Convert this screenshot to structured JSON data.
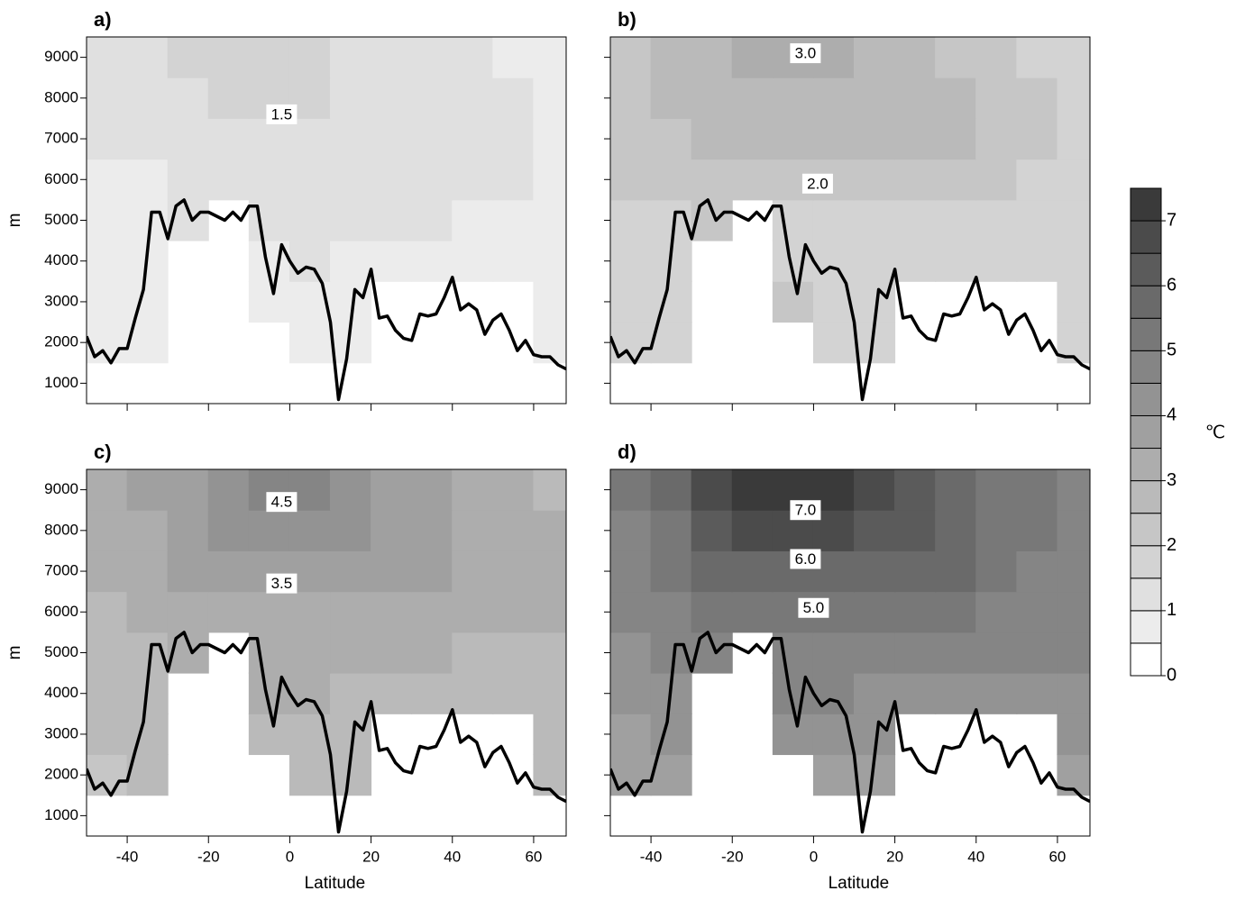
{
  "chart_data": [
    {
      "type": "contour",
      "label": "a)",
      "ylabel": "m",
      "xlim": [
        -50,
        68
      ],
      "ylim": [
        500,
        9500
      ],
      "yticks": [
        1000,
        2000,
        3000,
        4000,
        5000,
        6000,
        7000,
        8000,
        9000
      ],
      "x": [
        -45,
        -35,
        -25,
        -15,
        -5,
        5,
        15,
        25,
        35,
        45,
        55,
        65
      ],
      "y": [
        1000,
        2000,
        3000,
        4000,
        5000,
        6000,
        7000,
        8000,
        9000
      ],
      "z": [
        [
          null,
          null,
          null,
          null,
          null,
          null,
          null,
          null,
          null,
          null,
          null,
          null
        ],
        [
          0.8,
          0.8,
          null,
          null,
          null,
          0.9,
          0.9,
          null,
          null,
          null,
          null,
          0.9
        ],
        [
          0.8,
          0.8,
          null,
          null,
          0.9,
          0.9,
          0.9,
          null,
          null,
          null,
          null,
          0.9
        ],
        [
          0.8,
          0.8,
          null,
          null,
          0.9,
          1.0,
          0.9,
          0.9,
          0.9,
          0.9,
          0.8,
          0.9
        ],
        [
          0.9,
          0.9,
          1.0,
          null,
          1.1,
          1.1,
          1.1,
          1.0,
          1.1,
          0.9,
          0.9,
          0.9
        ],
        [
          0.9,
          0.9,
          1.1,
          1.2,
          1.2,
          1.2,
          1.2,
          1.2,
          1.1,
          1.1,
          1.0,
          0.9
        ],
        [
          1.1,
          1.2,
          1.3,
          1.3,
          1.3,
          1.3,
          1.3,
          1.2,
          1.2,
          1.1,
          1.1,
          0.9
        ],
        [
          1.2,
          1.3,
          1.4,
          1.5,
          1.6,
          1.5,
          1.4,
          1.3,
          1.2,
          1.1,
          1.0,
          0.9
        ],
        [
          1.2,
          1.3,
          1.6,
          1.8,
          1.8,
          1.7,
          1.4,
          1.3,
          1.2,
          1.1,
          0.9,
          0.8
        ]
      ],
      "contour_labels": {
        "values": [
          1.5
        ]
      },
      "terrain": {
        "x": [
          -50,
          -48,
          -46,
          -44,
          -42,
          -40,
          -38,
          -36,
          -34,
          -32,
          -30,
          -28,
          -26,
          -24,
          -22,
          -20,
          -18,
          -16,
          -14,
          -12,
          -10,
          -8,
          -6,
          -4,
          -2,
          0,
          2,
          4,
          6,
          8,
          10,
          12,
          14,
          16,
          18,
          20,
          22,
          24,
          26,
          28,
          30,
          32,
          34,
          36,
          38,
          40,
          42,
          44,
          46,
          48,
          50,
          52,
          54,
          56,
          58,
          60,
          62,
          64,
          66,
          68
        ],
        "values": [
          2150,
          1650,
          1800,
          1500,
          1850,
          1850,
          2600,
          3300,
          5200,
          5200,
          4550,
          5350,
          5500,
          5000,
          5200,
          5200,
          5100,
          5000,
          5200,
          5000,
          5350,
          5350,
          4100,
          3200,
          4400,
          4000,
          3700,
          3850,
          3800,
          3450,
          2500,
          600,
          1600,
          3300,
          3100,
          3800,
          2600,
          2650,
          2300,
          2100,
          2050,
          2700,
          2650,
          2700,
          3100,
          3600,
          2800,
          2950,
          2800,
          2200,
          2550,
          2700,
          2300,
          1800,
          2050,
          1700,
          1650,
          1650,
          1450,
          1350
        ]
      }
    },
    {
      "type": "contour",
      "label": "b)",
      "xlim": [
        -50,
        68
      ],
      "ylim": [
        500,
        9500
      ],
      "x": [
        -45,
        -35,
        -25,
        -15,
        -5,
        5,
        15,
        25,
        35,
        45,
        55,
        65
      ],
      "y": [
        1000,
        2000,
        3000,
        4000,
        5000,
        6000,
        7000,
        8000,
        9000
      ],
      "z": [
        [
          null,
          null,
          null,
          null,
          null,
          null,
          null,
          null,
          null,
          null,
          null,
          null
        ],
        [
          1.8,
          1.9,
          null,
          null,
          null,
          1.9,
          1.9,
          null,
          null,
          null,
          null,
          1.8
        ],
        [
          1.8,
          1.8,
          null,
          null,
          2.0,
          1.9,
          1.9,
          null,
          null,
          null,
          null,
          1.8
        ],
        [
          1.8,
          1.9,
          null,
          null,
          1.9,
          1.9,
          1.9,
          1.9,
          1.9,
          1.9,
          1.7,
          1.8
        ],
        [
          1.8,
          1.9,
          2.0,
          null,
          1.9,
          1.9,
          1.9,
          1.9,
          1.9,
          1.9,
          1.8,
          1.8
        ],
        [
          2.0,
          2.1,
          2.3,
          2.4,
          2.2,
          2.1,
          2.0,
          2.0,
          2.3,
          2.3,
          1.9,
          1.9
        ],
        [
          2.1,
          2.4,
          2.6,
          2.6,
          2.6,
          2.6,
          2.6,
          2.5,
          2.5,
          2.4,
          2.0,
          1.9
        ],
        [
          2.2,
          2.5,
          2.7,
          2.8,
          2.8,
          2.8,
          2.7,
          2.6,
          2.5,
          2.3,
          2.0,
          1.9
        ],
        [
          2.3,
          2.6,
          2.8,
          3.0,
          3.1,
          3.0,
          2.8,
          2.6,
          2.4,
          2.2,
          1.9,
          1.8
        ]
      ],
      "contour_labels": {
        "values": [
          3,
          2
        ],
        "value_labels": [
          "3.0",
          "2.0"
        ]
      }
    },
    {
      "type": "contour",
      "label": "c)",
      "ylabel": "m",
      "xlabel": "Latitude",
      "xlim": [
        -50,
        68
      ],
      "ylim": [
        500,
        9500
      ],
      "yticks": [
        1000,
        2000,
        3000,
        4000,
        5000,
        6000,
        7000,
        8000,
        9000
      ],
      "xticks": [
        -40,
        -20,
        0,
        20,
        40,
        60
      ],
      "x": [
        -45,
        -35,
        -25,
        -15,
        -5,
        5,
        15,
        25,
        35,
        45,
        55,
        65
      ],
      "y": [
        1000,
        2000,
        3000,
        4000,
        5000,
        6000,
        7000,
        8000,
        9000
      ],
      "z": [
        [
          null,
          null,
          null,
          null,
          null,
          null,
          null,
          null,
          null,
          null,
          null,
          null
        ],
        [
          2.4,
          2.6,
          null,
          null,
          null,
          2.9,
          2.8,
          null,
          null,
          null,
          null,
          2.6
        ],
        [
          2.5,
          2.6,
          null,
          null,
          2.9,
          2.9,
          2.8,
          null,
          null,
          null,
          null,
          2.7
        ],
        [
          2.6,
          2.8,
          null,
          null,
          3.0,
          3.0,
          2.9,
          2.9,
          2.9,
          2.9,
          2.8,
          2.8
        ],
        [
          2.7,
          2.9,
          3.1,
          null,
          3.1,
          3.1,
          3.0,
          3.0,
          3.0,
          2.9,
          2.9,
          2.9
        ],
        [
          2.9,
          3.1,
          3.3,
          3.2,
          3.2,
          3.3,
          3.4,
          3.3,
          3.1,
          3.2,
          3.1,
          3.1
        ],
        [
          3.1,
          3.3,
          3.5,
          3.6,
          3.6,
          3.6,
          3.6,
          3.6,
          3.5,
          3.4,
          3.2,
          3.1
        ],
        [
          3.2,
          3.4,
          3.7,
          4.0,
          4.1,
          4.1,
          4.0,
          3.8,
          3.6,
          3.4,
          3.2,
          3.0
        ],
        [
          3.3,
          3.5,
          3.9,
          4.3,
          4.6,
          4.5,
          4.2,
          3.8,
          3.5,
          3.3,
          3.1,
          2.9
        ]
      ],
      "contour_labels": {
        "values": [
          4.5,
          3.5
        ]
      }
    },
    {
      "type": "contour",
      "label": "d)",
      "xlabel": "Latitude",
      "xlim": [
        -50,
        68
      ],
      "ylim": [
        500,
        9500
      ],
      "xticks": [
        -40,
        -20,
        0,
        20,
        40,
        60
      ],
      "x": [
        -45,
        -35,
        -25,
        -15,
        -5,
        5,
        15,
        25,
        35,
        45,
        55,
        65
      ],
      "y": [
        1000,
        2000,
        3000,
        4000,
        5000,
        6000,
        7000,
        8000,
        9000
      ],
      "z": [
        [
          null,
          null,
          null,
          null,
          null,
          null,
          null,
          null,
          null,
          null,
          null,
          null
        ],
        [
          3.6,
          3.9,
          null,
          null,
          null,
          3.8,
          3.8,
          null,
          null,
          null,
          null,
          3.9
        ],
        [
          3.8,
          4.1,
          null,
          null,
          4.4,
          4.2,
          4.0,
          null,
          null,
          null,
          null,
          4.1
        ],
        [
          4.0,
          4.3,
          null,
          null,
          4.5,
          4.5,
          4.4,
          4.4,
          4.4,
          4.4,
          4.3,
          4.3
        ],
        [
          4.2,
          4.5,
          4.8,
          null,
          4.7,
          4.8,
          4.6,
          4.6,
          4.6,
          4.6,
          4.6,
          4.5
        ],
        [
          4.5,
          4.8,
          5.1,
          5.0,
          5.0,
          5.1,
          5.2,
          5.1,
          5.0,
          4.9,
          4.8,
          4.7
        ],
        [
          4.8,
          5.1,
          5.5,
          5.8,
          5.9,
          5.9,
          5.8,
          5.7,
          5.5,
          5.2,
          4.9,
          4.8
        ],
        [
          4.9,
          5.3,
          6.0,
          6.6,
          6.8,
          6.7,
          6.4,
          6.0,
          5.7,
          5.3,
          5.0,
          4.8
        ],
        [
          5.0,
          5.6,
          6.6,
          7.2,
          7.4,
          7.3,
          6.9,
          6.3,
          5.8,
          5.4,
          5.0,
          4.7
        ]
      ],
      "contour_labels": {
        "values": [
          7,
          6,
          5
        ],
        "value_labels": [
          "7.0",
          "6.0",
          "5.0"
        ]
      }
    },
    {
      "type": "colorbar",
      "label": "℃",
      "bounds": [
        0,
        0.5,
        1,
        1.5,
        2,
        2.5,
        3,
        3.5,
        4,
        4.5,
        5,
        5.5,
        6,
        6.5,
        7,
        7.5
      ],
      "colors": [
        "#ffffff",
        "#ececec",
        "#e0e0e0",
        "#d3d3d3",
        "#c6c6c6",
        "#bababa",
        "#adadad",
        "#a0a0a0",
        "#939393",
        "#858585",
        "#787878",
        "#6a6a6a",
        "#5b5b5b",
        "#4b4b4b",
        "#3a3a3a"
      ],
      "ticks": [
        0,
        1,
        2,
        3,
        4,
        5,
        6,
        7
      ]
    }
  ]
}
